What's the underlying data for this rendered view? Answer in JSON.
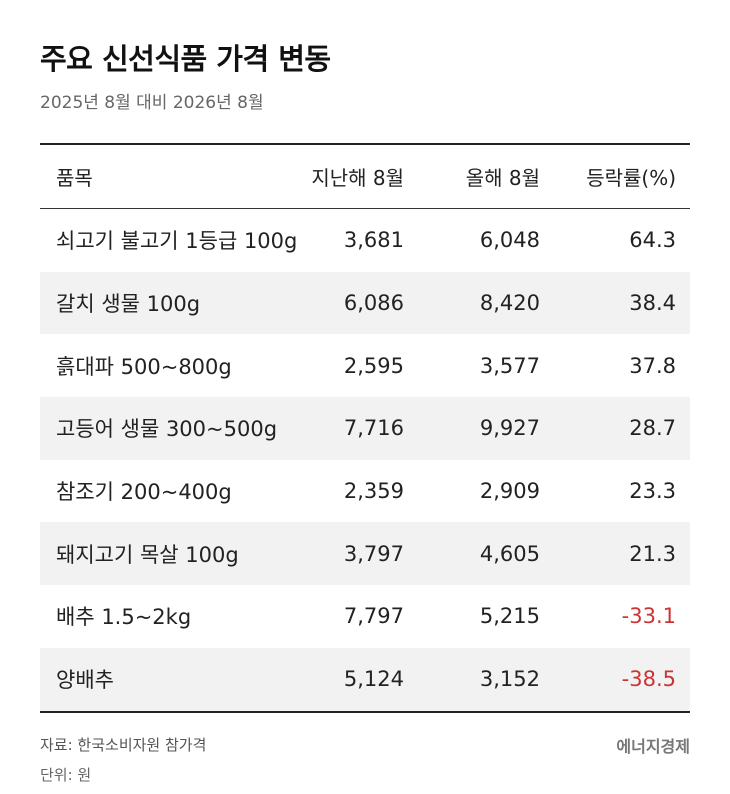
{
  "header": {
    "title": "주요 신선식품 가격 변동",
    "subtitle": "2025년 8월 대비 2026년 8월"
  },
  "chart_data": {
    "type": "table",
    "columns": [
      "품목",
      "지난해 8월",
      "올해 8월",
      "등락률(%)"
    ],
    "rows": [
      {
        "item": "쇠고기 불고기 1등급 100g",
        "prev": "3,681",
        "curr": "6,048",
        "rate": "64.3"
      },
      {
        "item": "갈치 생물 100g",
        "prev": "6,086",
        "curr": "8,420",
        "rate": "38.4"
      },
      {
        "item": "흙대파 500~800g",
        "prev": "2,595",
        "curr": "3,577",
        "rate": "37.8"
      },
      {
        "item": "고등어 생물 300~500g",
        "prev": "7,716",
        "curr": "9,927",
        "rate": "28.7"
      },
      {
        "item": "참조기 200~400g",
        "prev": "2,359",
        "curr": "2,909",
        "rate": "23.3"
      },
      {
        "item": "돼지고기 목살 100g",
        "prev": "3,797",
        "curr": "4,605",
        "rate": "21.3"
      },
      {
        "item": "배추 1.5~2kg",
        "prev": "7,797",
        "curr": "5,215",
        "rate": "-33.1"
      },
      {
        "item": "양배추",
        "prev": "5,124",
        "curr": "3,152",
        "rate": "-38.5"
      }
    ]
  },
  "colors": {
    "negative": "#cc3333",
    "row_shade": "#f2f2f2"
  },
  "footer": {
    "source": "자료: 한국소비자원 참가격",
    "unit": "단위: 원",
    "brand": "에너지경제"
  }
}
